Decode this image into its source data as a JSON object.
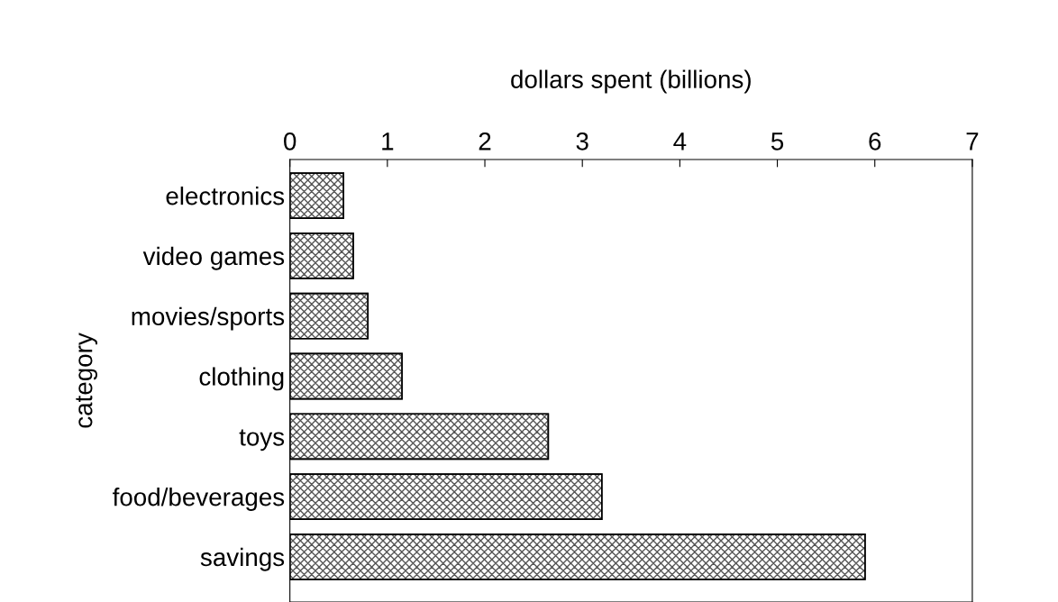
{
  "chart_data": {
    "type": "bar",
    "orientation": "horizontal",
    "xlabel": "dollars spent (billions)",
    "ylabel": "category",
    "categories": [
      "electronics",
      "video games",
      "movies/sports",
      "clothing",
      "toys",
      "food/beverages",
      "savings"
    ],
    "values": [
      0.55,
      0.65,
      0.8,
      1.15,
      2.65,
      3.2,
      5.9
    ],
    "color": "#555555",
    "xlim": [
      0,
      7
    ],
    "xticks": [
      0,
      1,
      2,
      3,
      4,
      5,
      6,
      7
    ],
    "grid": false,
    "legend": false
  }
}
